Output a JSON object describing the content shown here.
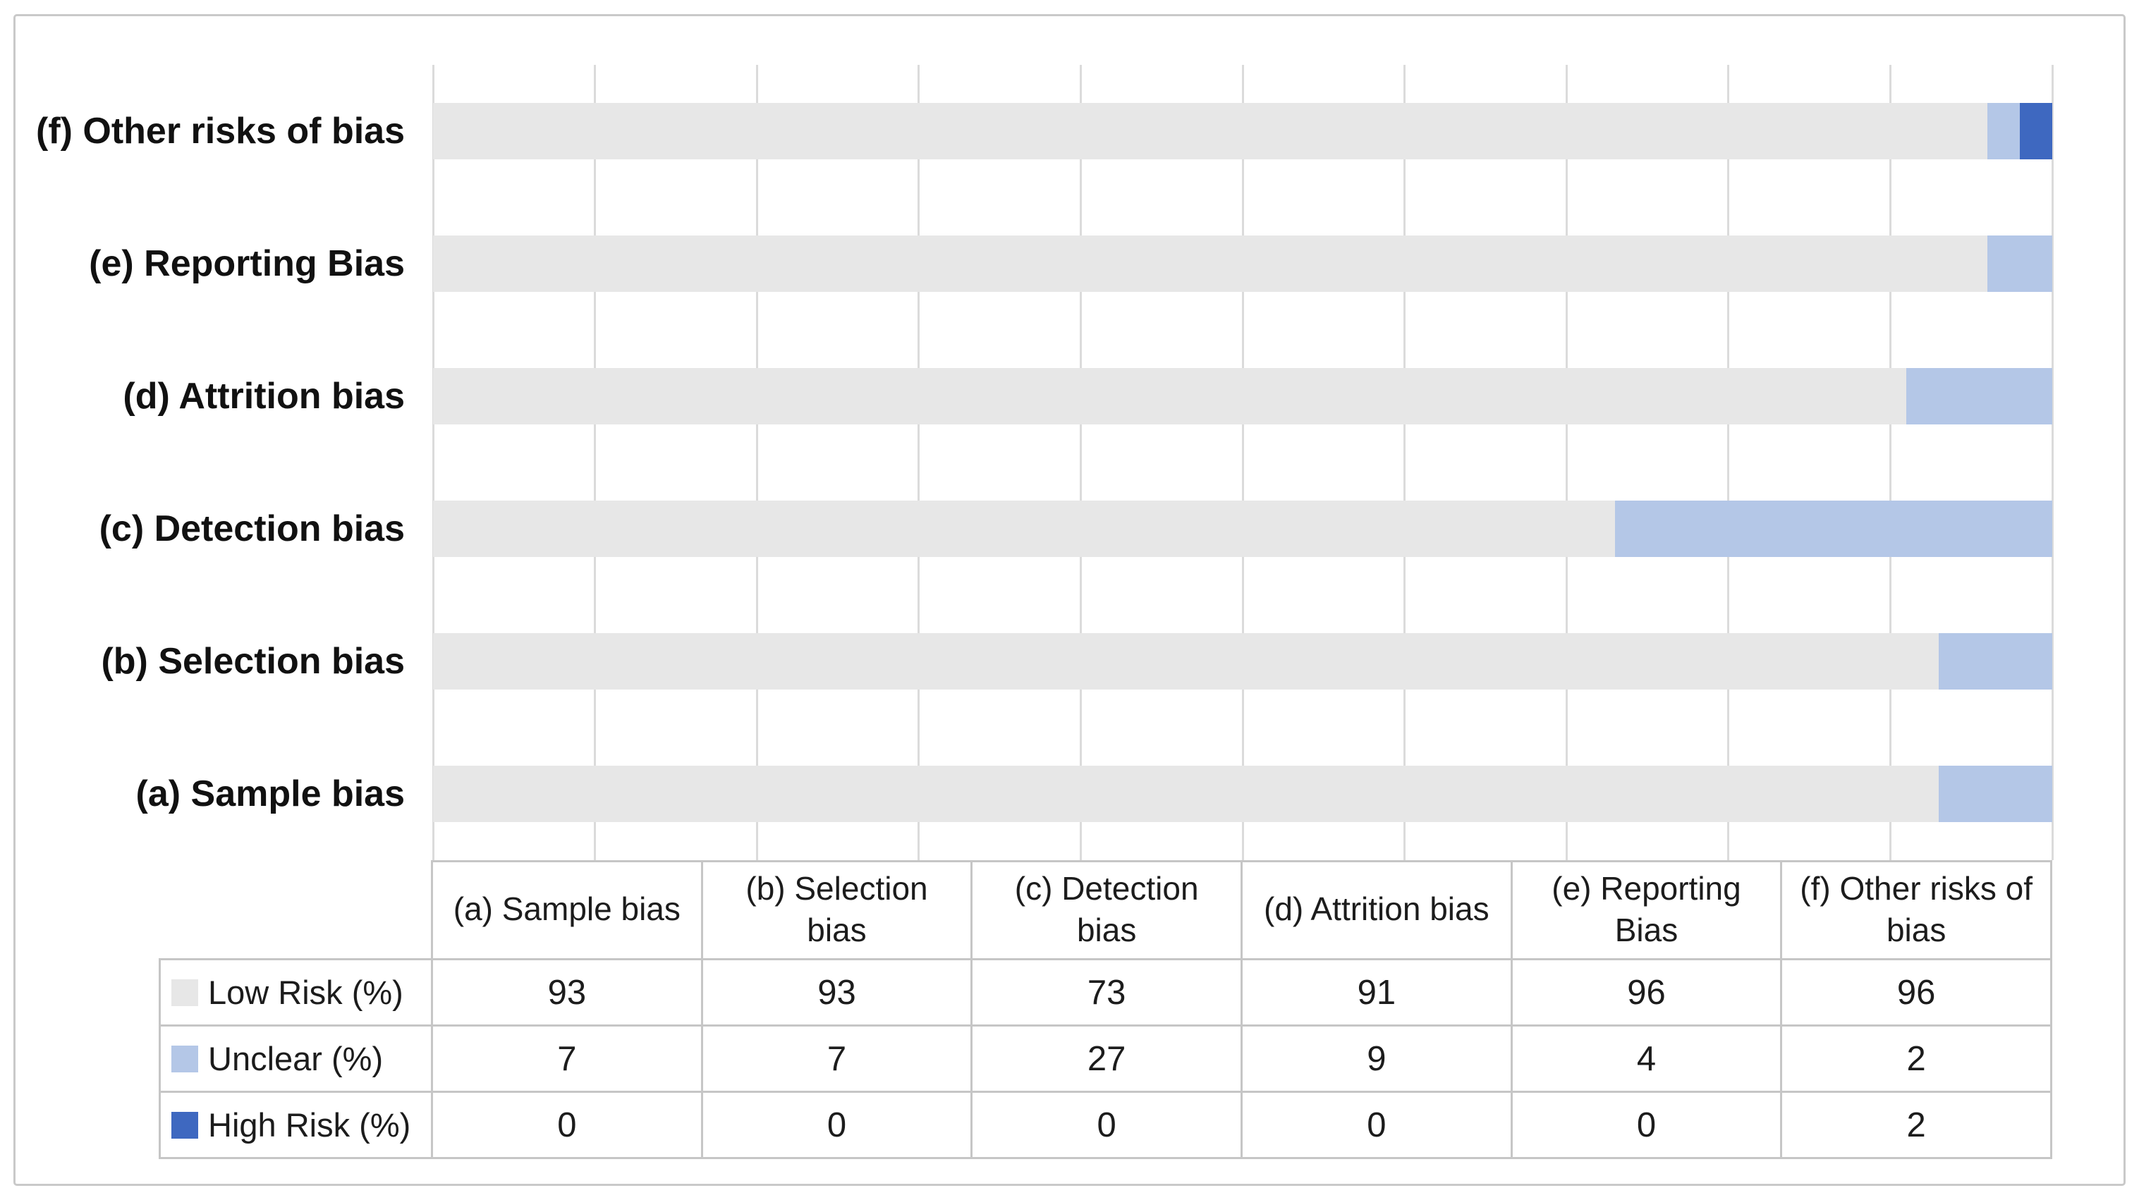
{
  "figure": {
    "background": "#FFFFFF",
    "border_color": "#C9C9C9",
    "text_color": "#1C1C1C"
  },
  "chart_data": {
    "type": "bar",
    "orientation": "horizontal",
    "stacked": true,
    "title": "",
    "categories": [
      "(a) Sample bias",
      "(b) Selection bias",
      "(c) Detection bias",
      "(d) Attrition bias",
      "(e) Reporting Bias",
      "(f) Other risks of bias"
    ],
    "bar_order_top_to_bottom": [
      "(f) Other risks of bias",
      "(e) Reporting Bias",
      "(d) Attrition bias",
      "(c) Detection bias",
      "(b) Selection bias",
      "(a) Sample bias"
    ],
    "series": [
      {
        "name": "Low Risk (%)",
        "color": "#E7E7E7",
        "values": [
          93,
          93,
          73,
          91,
          96,
          96
        ]
      },
      {
        "name": "Unclear (%)",
        "color": "#B4C7E7",
        "values": [
          7,
          7,
          27,
          9,
          4,
          2
        ]
      },
      {
        "name": "High Risk (%)",
        "color": "#3E68C0",
        "values": [
          0,
          0,
          0,
          0,
          0,
          2
        ]
      }
    ],
    "xlim": [
      0,
      100
    ],
    "gridline_step": 10,
    "grid": true,
    "gridline_color": "#DBDBDB",
    "legend_position": "table-row-headers",
    "table": {
      "border_color": "#C6C6C6",
      "column_header_lines": [
        [
          "(a) Sample bias"
        ],
        [
          "(b) Selection",
          "bias"
        ],
        [
          "(c) Detection",
          "bias"
        ],
        [
          "(d) Attrition bias"
        ],
        [
          "(e) Reporting",
          "Bias"
        ],
        [
          "(f) Other risks of",
          "bias"
        ]
      ]
    }
  }
}
